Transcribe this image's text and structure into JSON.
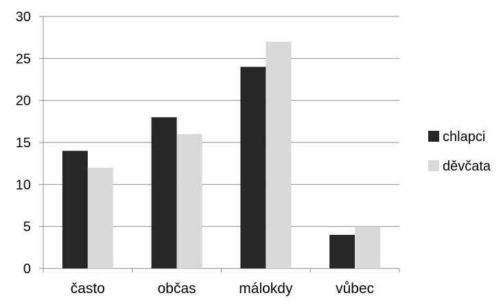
{
  "chart_data": {
    "type": "bar",
    "title": "",
    "xlabel": "",
    "ylabel": "",
    "categories": [
      "často",
      "občas",
      "málokdy",
      "vůbec"
    ],
    "series": [
      {
        "name": "chlapci",
        "values": [
          14,
          18,
          24,
          4
        ],
        "color": "#262626"
      },
      {
        "name": "děvčata",
        "values": [
          12,
          16,
          27,
          5
        ],
        "color": "#d9d9d9"
      }
    ],
    "ylim": [
      0,
      30
    ],
    "yticks": [
      0,
      5,
      10,
      15,
      20,
      25,
      30
    ],
    "grid": true,
    "legend_position": "right"
  }
}
